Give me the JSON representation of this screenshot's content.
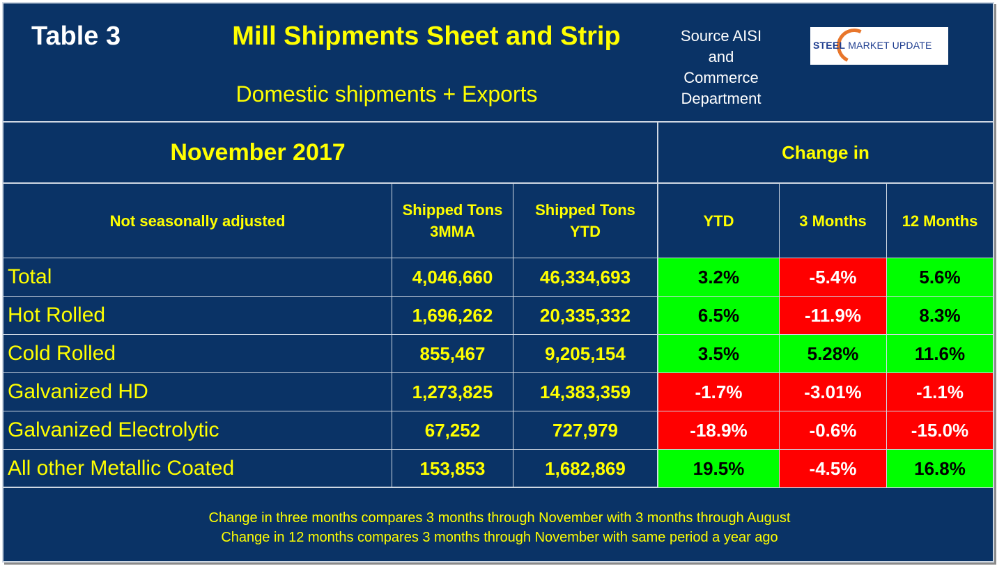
{
  "header": {
    "table_label": "Table 3",
    "title": "Mill Shipments Sheet and Strip",
    "subtitle": "Domestic shipments + Exports",
    "source_lines": [
      "Source AISI",
      "and",
      "Commerce",
      "Department"
    ],
    "logo": {
      "brand_bold": "STEEL",
      "brand_rest": " MARKET UPDATE"
    }
  },
  "colors": {
    "background": "#0a3366",
    "text_accent": "#ffff00",
    "positive": "#00ff00",
    "negative": "#ff0000"
  },
  "chart_data": {
    "type": "table",
    "title": "Mill Shipments Sheet and Strip",
    "period": "November 2017",
    "group_header": "Change in",
    "columns": [
      "Not seasonally adjusted",
      "Shipped Tons 3MMA",
      "Shipped Tons YTD",
      "YTD",
      "3 Months",
      "12 Months"
    ],
    "column_headers": {
      "label": "Not seasonally adjusted",
      "c1_line1": "Shipped Tons",
      "c1_line2": "3MMA",
      "c2_line1": "Shipped Tons",
      "c2_line2": "YTD",
      "ytd": "YTD",
      "m3": "3 Months",
      "m12": "12 Months"
    },
    "rows": [
      {
        "name": "Total",
        "tons_3mma": "4,046,660",
        "tons_ytd": "46,334,693",
        "chg_ytd": "3.2%",
        "chg_3m": "-5.4%",
        "chg_12m": "5.6%"
      },
      {
        "name": "Hot Rolled",
        "tons_3mma": "1,696,262",
        "tons_ytd": "20,335,332",
        "chg_ytd": "6.5%",
        "chg_3m": "-11.9%",
        "chg_12m": "8.3%"
      },
      {
        "name": "Cold Rolled",
        "tons_3mma": "855,467",
        "tons_ytd": "9,205,154",
        "chg_ytd": "3.5%",
        "chg_3m": "5.28%",
        "chg_12m": "11.6%"
      },
      {
        "name": "Galvanized HD",
        "tons_3mma": "1,273,825",
        "tons_ytd": "14,383,359",
        "chg_ytd": "-1.7%",
        "chg_3m": "-3.01%",
        "chg_12m": "-1.1%"
      },
      {
        "name": "Galvanized Electrolytic",
        "tons_3mma": "67,252",
        "tons_ytd": "727,979",
        "chg_ytd": "-18.9%",
        "chg_3m": "-0.6%",
        "chg_12m": "-15.0%"
      },
      {
        "name": "All other Metallic Coated",
        "tons_3mma": "153,853",
        "tons_ytd": "1,682,869",
        "chg_ytd": "19.5%",
        "chg_3m": "-4.5%",
        "chg_12m": "16.8%"
      }
    ]
  },
  "footnotes": [
    "Change in three months compares 3 months through November with 3 months through August",
    "Change in 12 months compares 3 months through November with same period a year ago"
  ]
}
